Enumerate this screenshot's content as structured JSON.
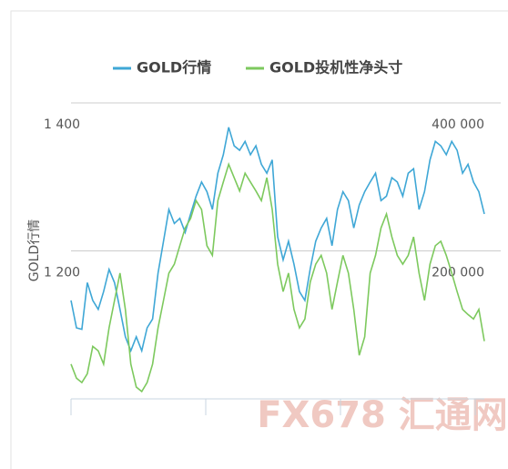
{
  "chart_data": {
    "type": "line",
    "y_label": "GOLD行情",
    "watermark": "FX678 汇通网",
    "categories": [
      null,
      null,
      null,
      null,
      null,
      null,
      null,
      null,
      null,
      null,
      null,
      null,
      null,
      null,
      null,
      null,
      null,
      null,
      null,
      null,
      null,
      null,
      null,
      null,
      null,
      null,
      null,
      null,
      null,
      null,
      null,
      null,
      null,
      null,
      null,
      null,
      null,
      null,
      null,
      null,
      null,
      null,
      null,
      null,
      null,
      null,
      null,
      null,
      null,
      null,
      null,
      null,
      null,
      null,
      null,
      null,
      null,
      null,
      null,
      null,
      null,
      null,
      null,
      null,
      null,
      null,
      null,
      null,
      null,
      null,
      null,
      null,
      null,
      null,
      null,
      null,
      null
    ],
    "series": [
      {
        "name": "GOLD行情",
        "color": "#3fa7d6",
        "axis": "y",
        "values": [
          1133,
          1096,
          1094,
          1157,
          1133,
          1121,
          1145,
          1175,
          1157,
          1121,
          1084,
          1065,
          1084,
          1065,
          1096,
          1108,
          1170,
          1213,
          1256,
          1237,
          1244,
          1225,
          1250,
          1274,
          1293,
          1280,
          1256,
          1305,
          1330,
          1367,
          1342,
          1336,
          1348,
          1330,
          1342,
          1317,
          1305,
          1323,
          1219,
          1188,
          1213,
          1182,
          1145,
          1133,
          1176,
          1213,
          1231,
          1244,
          1207,
          1256,
          1280,
          1268,
          1231,
          1262,
          1280,
          1293,
          1305,
          1268,
          1274,
          1299,
          1293,
          1274,
          1305,
          1311,
          1256,
          1280,
          1323,
          1348,
          1342,
          1330,
          1348,
          1336,
          1305,
          1317,
          1293,
          1280,
          1250
        ]
      },
      {
        "name": "GOLD投机性净头寸",
        "color": "#7dc95e",
        "axis": "y2",
        "values": [
          47000,
          28000,
          22000,
          34000,
          71000,
          65000,
          47000,
          96000,
          133000,
          170000,
          121000,
          47000,
          16000,
          10000,
          22000,
          47000,
          96000,
          133000,
          170000,
          182000,
          207000,
          231000,
          244000,
          268000,
          256000,
          207000,
          194000,
          268000,
          293000,
          317000,
          299000,
          281000,
          305000,
          293000,
          281000,
          268000,
          299000,
          256000,
          182000,
          145000,
          170000,
          121000,
          96000,
          108000,
          158000,
          182000,
          194000,
          170000,
          121000,
          158000,
          194000,
          170000,
          121000,
          59000,
          84000,
          170000,
          194000,
          231000,
          250000,
          219000,
          194000,
          182000,
          194000,
          219000,
          170000,
          133000,
          182000,
          207000,
          213000,
          194000,
          170000,
          145000,
          121000,
          114000,
          108000,
          121000,
          78000
        ]
      }
    ],
    "ylim": [
      1000,
      1400
    ],
    "yticks": [
      {
        "value": 1200,
        "label": "1 200"
      },
      {
        "value": 1400,
        "label": "1 400"
      }
    ],
    "y2lim": [
      0,
      400000
    ],
    "y2ticks": [
      {
        "value": 200000,
        "label": "200 000"
      },
      {
        "value": 400000,
        "label": "400 000"
      }
    ],
    "grid": true
  }
}
